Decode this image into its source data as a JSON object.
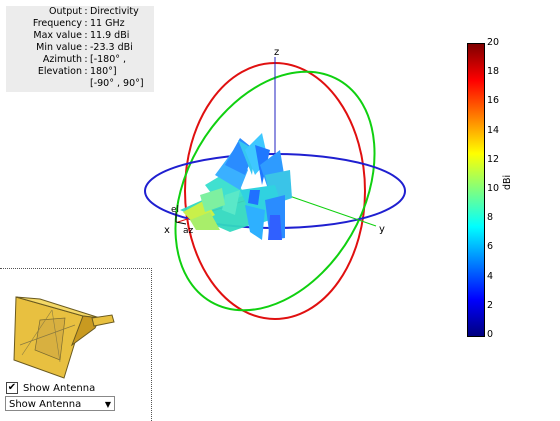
{
  "info": {
    "rows": [
      {
        "label": "Output",
        "value": "Directivity"
      },
      {
        "label": "Frequency",
        "value": "11 GHz"
      },
      {
        "label": "Max value",
        "value": "11.9 dBi"
      },
      {
        "label": "Min value",
        "value": "-23.3 dBi"
      },
      {
        "label": "Azimuth",
        "value": "[-180° ,"
      },
      {
        "label": "Elevation",
        "value": "180°]"
      }
    ],
    "continuation": "[-90° , 90°]"
  },
  "axes": {
    "x": "x",
    "y": "y",
    "z": "z",
    "az": "az",
    "el": "el"
  },
  "colorbar": {
    "unit": "dBi",
    "ticks": [
      "20",
      "18",
      "16",
      "14",
      "12",
      "10",
      "8",
      "6",
      "4",
      "2",
      "0"
    ]
  },
  "antenna_panel": {
    "checkbox_label": "Show Antenna",
    "checked": true,
    "dropdown_value": "Show Antenna"
  },
  "colors": {
    "azimuth_ring": "#1f1fd0",
    "elevation_ring_red": "#e01010",
    "elevation_ring_green": "#10d010",
    "axis_blue": "#2020c0",
    "antenna_gold": "#e8c040"
  }
}
